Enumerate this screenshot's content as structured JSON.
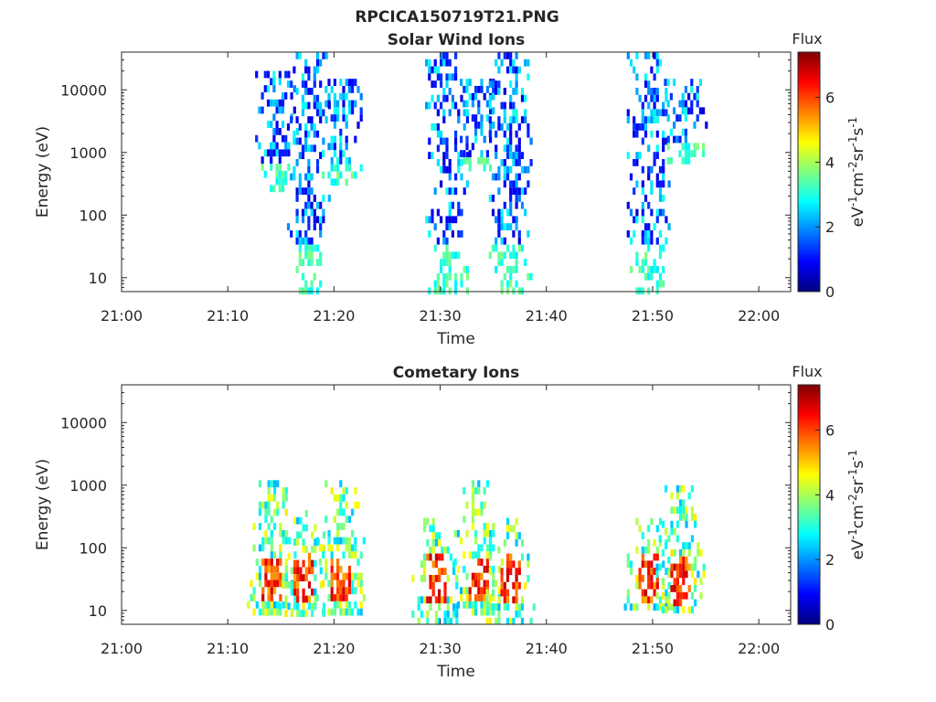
{
  "figure": {
    "title": "RPCICA150719T21.PNG"
  },
  "chart_data": [
    {
      "type": "heatmap",
      "title": "Solar Wind Ions",
      "xlabel": "Time",
      "ylabel": "Energy (eV)",
      "xlim": [
        "21:00",
        "22:03"
      ],
      "x_ticks": [
        "21:00",
        "21:10",
        "21:20",
        "21:30",
        "21:40",
        "21:50",
        "22:00"
      ],
      "y_scale": "log",
      "ylim": [
        6,
        40000
      ],
      "y_ticks": [
        "10",
        "100",
        "1000",
        "10000"
      ],
      "colorbar": {
        "title": "Flux",
        "ticks": [
          "0",
          "2",
          "4",
          "6"
        ],
        "range": [
          0,
          7.4
        ],
        "colormap": "jet",
        "unit_label": "eV-1cm-2sr-1s-1"
      },
      "bursts": [
        {
          "time": "21:14.5",
          "e_min": 300,
          "e_max": 20000,
          "flux": 1.2
        },
        {
          "time": "21:17.5",
          "e_min": 6,
          "e_max": 40000,
          "flux": 2.0
        },
        {
          "time": "21:20.5",
          "e_min": 300,
          "e_max": 15000,
          "flux": 1.8
        },
        {
          "time": "21:30.5",
          "e_min": 6,
          "e_max": 40000,
          "flux": 2.0
        },
        {
          "time": "21:33.5",
          "e_min": 500,
          "e_max": 15000,
          "flux": 1.8
        },
        {
          "time": "21:36.5",
          "e_min": 6,
          "e_max": 40000,
          "flux": 2.2
        },
        {
          "time": "21:49.5",
          "e_min": 6,
          "e_max": 40000,
          "flux": 1.8
        },
        {
          "time": "21:53.0",
          "e_min": 800,
          "e_max": 15000,
          "flux": 1.6
        }
      ]
    },
    {
      "type": "heatmap",
      "title": "Cometary Ions",
      "xlabel": "Time",
      "ylabel": "Energy (eV)",
      "xlim": [
        "21:00",
        "22:03"
      ],
      "x_ticks": [
        "21:00",
        "21:10",
        "21:20",
        "21:30",
        "21:40",
        "21:50",
        "22:00"
      ],
      "y_scale": "log",
      "ylim": [
        6,
        40000
      ],
      "y_ticks": [
        "10",
        "100",
        "1000",
        "10000"
      ],
      "colorbar": {
        "title": "Flux",
        "ticks": [
          "0",
          "2",
          "4",
          "6"
        ],
        "range": [
          0,
          7.4
        ],
        "colormap": "jet",
        "unit_label": "eV-1cm-2sr-1s-1"
      },
      "bursts": [
        {
          "time": "21:14.0",
          "e_min": 10,
          "e_max": 1200,
          "flux": 6.6
        },
        {
          "time": "21:17.0",
          "e_min": 10,
          "e_max": 400,
          "flux": 6.0
        },
        {
          "time": "21:20.5",
          "e_min": 10,
          "e_max": 1200,
          "flux": 6.4
        },
        {
          "time": "21:29.5",
          "e_min": 6,
          "e_max": 300,
          "flux": 6.6
        },
        {
          "time": "21:33.5",
          "e_min": 10,
          "e_max": 1200,
          "flux": 6.6
        },
        {
          "time": "21:36.5",
          "e_min": 6,
          "e_max": 300,
          "flux": 6.5
        },
        {
          "time": "21:49.5",
          "e_min": 10,
          "e_max": 300,
          "flux": 6.4
        },
        {
          "time": "21:52.5",
          "e_min": 10,
          "e_max": 1000,
          "flux": 6.6
        }
      ]
    }
  ]
}
